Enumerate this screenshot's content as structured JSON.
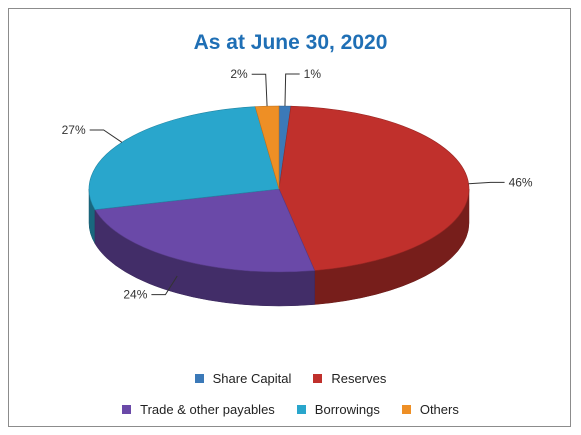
{
  "chart_data": {
    "type": "pie",
    "title": "As at June 30, 2020",
    "slices": [
      {
        "label": "Share Capital",
        "value": 1,
        "value_label": "1%",
        "color": "#3b79b8"
      },
      {
        "label": "Reserves",
        "value": 46,
        "value_label": "46%",
        "color": "#c0302c"
      },
      {
        "label": "Trade & other payables",
        "value": 24,
        "value_label": "24%",
        "color": "#6a49a8"
      },
      {
        "label": "Borrowings",
        "value": 27,
        "value_label": "27%",
        "color": "#29a6cc"
      },
      {
        "label": "Others",
        "value": 2,
        "value_label": "2%",
        "color": "#ee8f25"
      }
    ],
    "style": "3d",
    "legend_position": "bottom"
  }
}
